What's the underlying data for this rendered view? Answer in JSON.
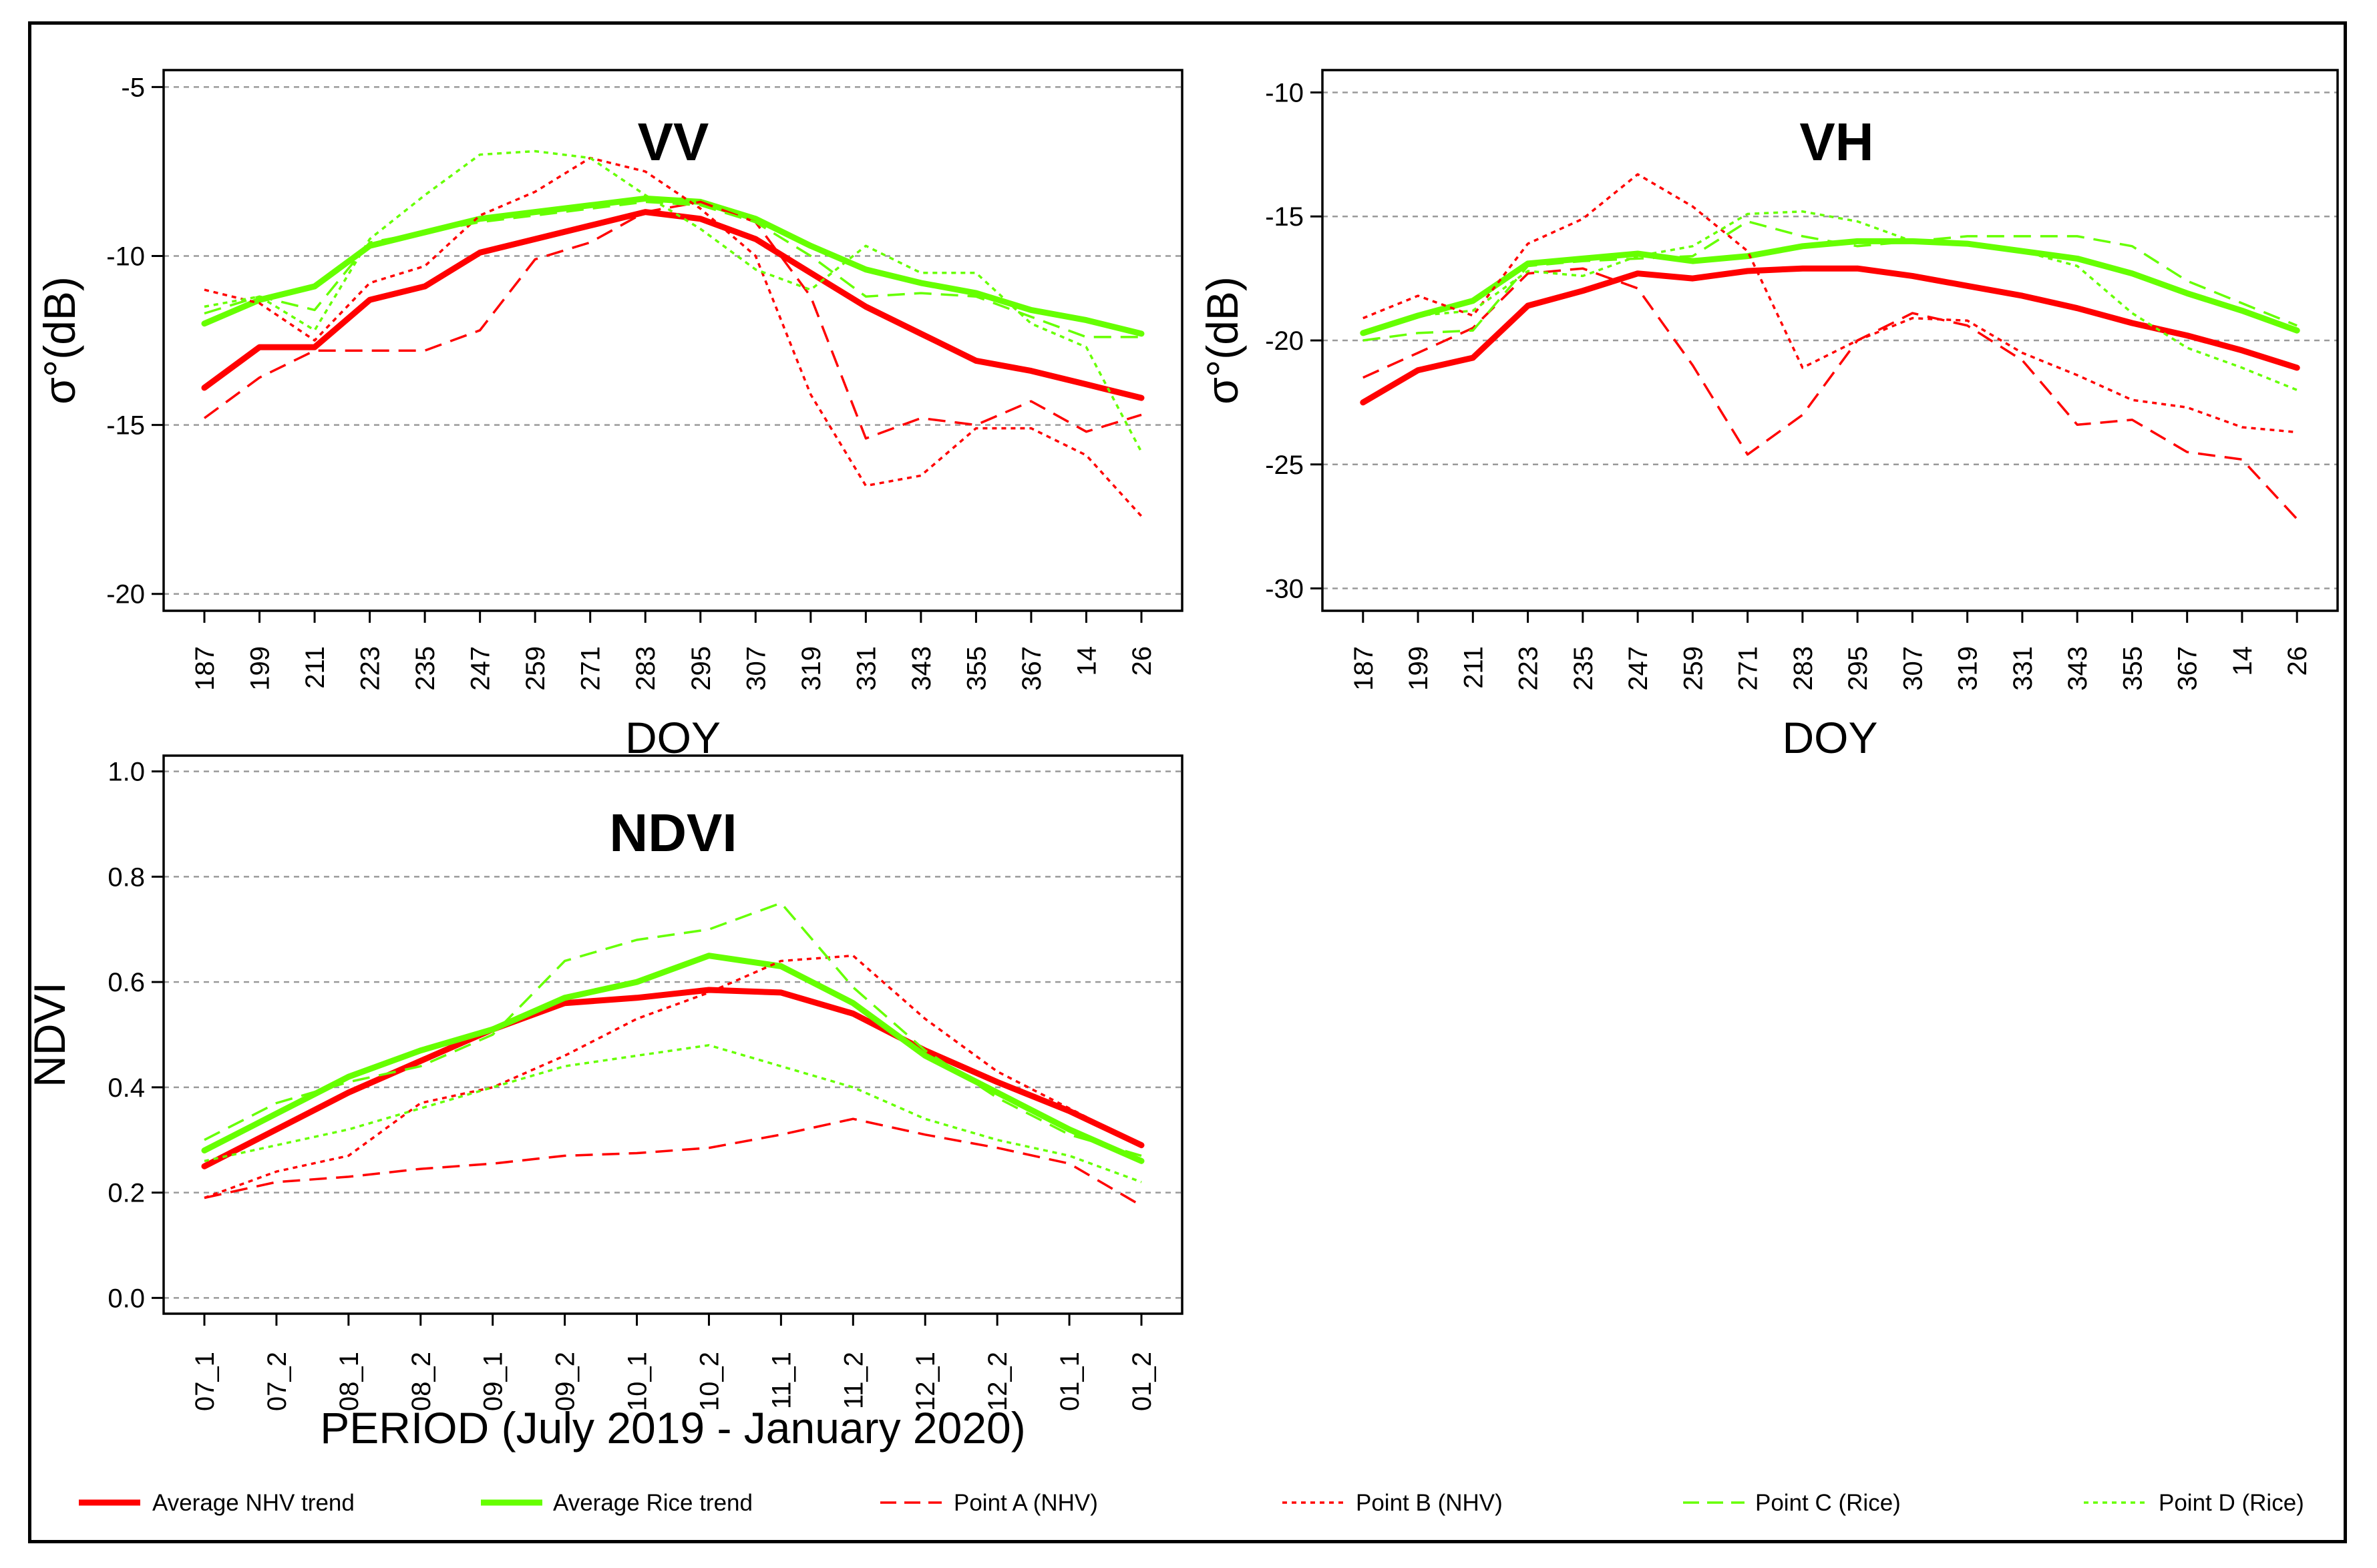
{
  "chart_data": [
    {
      "type": "line",
      "title": "VV",
      "xlabel": "DOY",
      "ylabel": "σ°(dB)",
      "categories": [
        "187",
        "199",
        "211",
        "223",
        "235",
        "247",
        "259",
        "271",
        "283",
        "295",
        "307",
        "319",
        "331",
        "343",
        "355",
        "367",
        "14",
        "26"
      ],
      "ylim": [
        -20.5,
        -4.5
      ],
      "yticks": [
        -5,
        -10,
        -15,
        -20
      ],
      "grid": "horizontal dashed",
      "series": [
        {
          "name": "Average NHV trend",
          "color": "#ff0000",
          "style": "thick",
          "values": [
            -13.9,
            -12.7,
            -12.7,
            -11.3,
            -10.9,
            -9.9,
            -9.5,
            -9.1,
            -8.7,
            -8.9,
            -9.5,
            -10.5,
            -11.5,
            -12.3,
            -13.1,
            -13.4,
            -13.8,
            -14.2
          ]
        },
        {
          "name": "Average Rice trend",
          "color": "#66ff00",
          "style": "thick",
          "values": [
            -12.0,
            -11.3,
            -10.9,
            -9.7,
            -9.3,
            -8.9,
            -8.7,
            -8.5,
            -8.3,
            -8.4,
            -8.9,
            -9.7,
            -10.4,
            -10.8,
            -11.1,
            -11.6,
            -11.9,
            -12.3
          ]
        },
        {
          "name": "Point A (NHV)",
          "color": "#ff0000",
          "style": "dashed",
          "values": [
            -14.8,
            -13.6,
            -12.8,
            -12.8,
            -12.8,
            -12.2,
            -10.1,
            -9.6,
            -8.7,
            -8.4,
            -9.0,
            -11.2,
            -15.4,
            -14.8,
            -15.0,
            -14.3,
            -15.2,
            -14.7
          ]
        },
        {
          "name": "Point B (NHV)",
          "color": "#ff0000",
          "style": "dotted",
          "values": [
            -11.0,
            -11.4,
            -12.5,
            -10.8,
            -10.3,
            -8.8,
            -8.1,
            -7.1,
            -7.5,
            -8.6,
            -10.0,
            -14.1,
            -16.8,
            -16.5,
            -15.1,
            -15.1,
            -15.9,
            -17.7
          ]
        },
        {
          "name": "Point C (Rice)",
          "color": "#66ff00",
          "style": "dashed",
          "values": [
            -11.7,
            -11.2,
            -11.6,
            -9.6,
            -9.3,
            -9.0,
            -8.8,
            -8.6,
            -8.4,
            -8.5,
            -9.0,
            -10.0,
            -11.2,
            -11.1,
            -11.2,
            -11.8,
            -12.4,
            -12.4
          ]
        },
        {
          "name": "Point D (Rice)",
          "color": "#66ff00",
          "style": "dotted",
          "values": [
            -11.5,
            -11.2,
            -12.2,
            -9.5,
            -8.2,
            -7.0,
            -6.9,
            -7.1,
            -8.2,
            -9.2,
            -10.4,
            -11.0,
            -9.7,
            -10.5,
            -10.5,
            -12.0,
            -12.7,
            -15.8
          ]
        }
      ]
    },
    {
      "type": "line",
      "title": "VH",
      "xlabel": "DOY",
      "ylabel": "σ°(dB)",
      "categories": [
        "187",
        "199",
        "211",
        "223",
        "235",
        "247",
        "259",
        "271",
        "283",
        "295",
        "307",
        "319",
        "331",
        "343",
        "355",
        "367",
        "14",
        "26"
      ],
      "ylim": [
        -30.9,
        -9.1
      ],
      "yticks": [
        -10,
        -15,
        -20,
        -25,
        -30
      ],
      "grid": "horizontal dashed",
      "series": [
        {
          "name": "Average NHV trend",
          "color": "#ff0000",
          "style": "thick",
          "values": [
            -22.5,
            -21.2,
            -20.7,
            -18.6,
            -18.0,
            -17.3,
            -17.5,
            -17.2,
            -17.1,
            -17.1,
            -17.4,
            -17.8,
            -18.2,
            -18.7,
            -19.3,
            -19.8,
            -20.4,
            -21.1
          ]
        },
        {
          "name": "Average Rice trend",
          "color": "#66ff00",
          "style": "thick",
          "values": [
            -19.7,
            -19.0,
            -18.4,
            -16.9,
            -16.7,
            -16.5,
            -16.8,
            -16.6,
            -16.2,
            -16.0,
            -16.0,
            -16.1,
            -16.4,
            -16.7,
            -17.3,
            -18.1,
            -18.8,
            -19.6
          ]
        },
        {
          "name": "Point A (NHV)",
          "color": "#ff0000",
          "style": "dashed",
          "values": [
            -21.5,
            -20.5,
            -19.5,
            -17.3,
            -17.1,
            -17.9,
            -21.0,
            -24.6,
            -23.0,
            -20.0,
            -18.9,
            -19.4,
            -20.8,
            -23.4,
            -23.2,
            -24.5,
            -24.8,
            -27.2
          ]
        },
        {
          "name": "Point B (NHV)",
          "color": "#ff0000",
          "style": "dotted",
          "values": [
            -19.1,
            -18.2,
            -19.0,
            -16.1,
            -15.1,
            -13.3,
            -14.6,
            -16.4,
            -21.1,
            -20.0,
            -19.1,
            -19.2,
            -20.5,
            -21.4,
            -22.4,
            -22.7,
            -23.5,
            -23.7
          ]
        },
        {
          "name": "Point C (Rice)",
          "color": "#66ff00",
          "style": "dashed",
          "values": [
            -20.0,
            -19.7,
            -19.6,
            -17.0,
            -16.8,
            -16.7,
            -16.6,
            -15.2,
            -15.8,
            -16.2,
            -16.0,
            -15.8,
            -15.8,
            -15.8,
            -16.2,
            -17.6,
            -18.5,
            -19.4
          ]
        },
        {
          "name": "Point D (Rice)",
          "color": "#66ff00",
          "style": "dotted",
          "values": [
            -19.7,
            -19.0,
            -18.8,
            -17.2,
            -17.4,
            -16.6,
            -16.2,
            -14.9,
            -14.8,
            -15.2,
            -16.0,
            -16.1,
            -16.4,
            -17.0,
            -18.9,
            -20.3,
            -21.1,
            -22.0
          ]
        }
      ]
    },
    {
      "type": "line",
      "title": "NDVI",
      "xlabel": "PERIOD (July 2019 - January 2020)",
      "ylabel": "NDVI",
      "categories": [
        "07_1",
        "07_2",
        "08_1",
        "08_2",
        "09_1",
        "09_2",
        "10_1",
        "10_2",
        "11_1",
        "11_2",
        "12_1",
        "12_2",
        "01_1",
        "01_2"
      ],
      "ylim": [
        -0.03,
        1.03
      ],
      "yticks": [
        0.0,
        0.2,
        0.4,
        0.6,
        0.8,
        1.0
      ],
      "ytick_labels": [
        "0.0",
        "0.2",
        "0.4",
        "0.6",
        "0.8",
        "1.0"
      ],
      "grid": "horizontal dashed",
      "series": [
        {
          "name": "Average NHV trend",
          "color": "#ff0000",
          "style": "thick",
          "values": [
            0.25,
            0.32,
            0.39,
            0.45,
            0.51,
            0.56,
            0.57,
            0.585,
            0.58,
            0.54,
            0.47,
            0.41,
            0.355,
            0.29
          ]
        },
        {
          "name": "Average Rice trend",
          "color": "#66ff00",
          "style": "thick",
          "values": [
            0.28,
            0.35,
            0.42,
            0.47,
            0.51,
            0.57,
            0.6,
            0.65,
            0.63,
            0.56,
            0.46,
            0.39,
            0.32,
            0.26
          ]
        },
        {
          "name": "Point A (NHV)",
          "color": "#ff0000",
          "style": "dashed",
          "values": [
            0.19,
            0.22,
            0.23,
            0.245,
            0.255,
            0.27,
            0.275,
            0.285,
            0.31,
            0.34,
            0.31,
            0.285,
            0.255,
            0.175
          ]
        },
        {
          "name": "Point B (NHV)",
          "color": "#ff0000",
          "style": "dotted",
          "values": [
            0.19,
            0.24,
            0.27,
            0.37,
            0.4,
            0.46,
            0.53,
            0.58,
            0.64,
            0.65,
            0.53,
            0.43,
            0.36,
            0.29
          ]
        },
        {
          "name": "Point C (Rice)",
          "color": "#66ff00",
          "style": "dashed",
          "values": [
            0.3,
            0.37,
            0.41,
            0.44,
            0.5,
            0.64,
            0.68,
            0.7,
            0.75,
            0.59,
            0.47,
            0.38,
            0.31,
            0.27
          ]
        },
        {
          "name": "Point D (Rice)",
          "color": "#66ff00",
          "style": "dotted",
          "values": [
            0.26,
            0.29,
            0.32,
            0.36,
            0.4,
            0.44,
            0.46,
            0.48,
            0.44,
            0.4,
            0.34,
            0.3,
            0.27,
            0.22
          ]
        }
      ]
    }
  ],
  "legend": {
    "placement": "bottom",
    "items": [
      {
        "label": "Average NHV trend",
        "color": "#ff0000",
        "style": "thick"
      },
      {
        "label": "Average Rice trend",
        "color": "#66ff00",
        "style": "thick"
      },
      {
        "label": "Point A (NHV)",
        "color": "#ff0000",
        "style": "dashed"
      },
      {
        "label": "Point B (NHV)",
        "color": "#ff0000",
        "style": "dotted"
      },
      {
        "label": "Point C (Rice)",
        "color": "#66ff00",
        "style": "dashed"
      },
      {
        "label": "Point D (Rice)",
        "color": "#66ff00",
        "style": "dotted"
      }
    ]
  }
}
